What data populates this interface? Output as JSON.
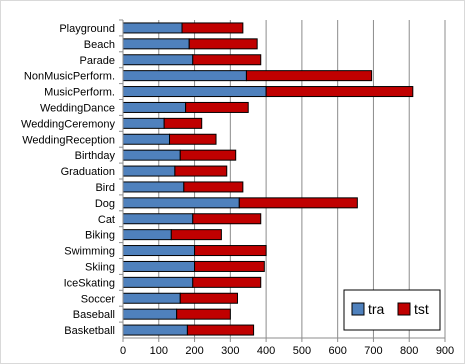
{
  "chart_data": {
    "type": "bar",
    "orientation": "horizontal",
    "stacked": true,
    "categories": [
      "Playground",
      "Beach",
      "Parade",
      "NonMusicPerform.",
      "MusicPerform.",
      "WeddingDance",
      "WeddingCeremony",
      "WeddingReception",
      "Birthday",
      "Graduation",
      "Bird",
      "Dog",
      "Cat",
      "Biking",
      "Swimming",
      "Skiing",
      "IceSkating",
      "Soccer",
      "Baseball",
      "Basketball"
    ],
    "series": [
      {
        "name": "tra",
        "color": "#4F81BD",
        "values": [
          165,
          185,
          195,
          345,
          400,
          175,
          115,
          130,
          160,
          145,
          170,
          325,
          195,
          135,
          200,
          200,
          195,
          160,
          150,
          180
        ]
      },
      {
        "name": "tst",
        "color": "#C00000",
        "values": [
          170,
          190,
          190,
          350,
          410,
          175,
          105,
          130,
          155,
          145,
          165,
          330,
          190,
          140,
          200,
          195,
          190,
          160,
          150,
          185
        ]
      }
    ],
    "xlim": [
      0,
      900
    ],
    "xticks": [
      "0",
      "100",
      "200",
      "300",
      "400",
      "500",
      "600",
      "700",
      "800",
      "900"
    ],
    "grid": "vertical",
    "legend_position": "bottom-right",
    "title": "",
    "xlabel": "",
    "ylabel": ""
  }
}
